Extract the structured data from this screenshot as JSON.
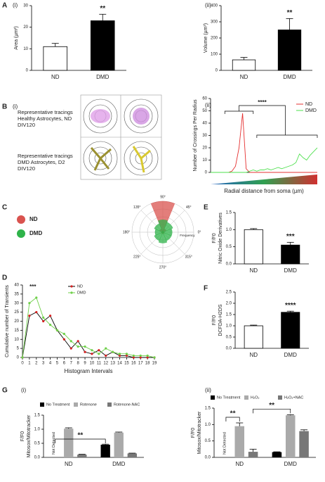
{
  "panel_labels": [
    "A",
    "B",
    "C",
    "D",
    "E",
    "F",
    "G"
  ],
  "sub_labels": [
    "(i)",
    "(ii)",
    "(i)",
    "(ii)",
    "(i)",
    "(ii)"
  ],
  "tracing_text": [
    [
      "Representative tracings",
      "Healthy Astrocytes, ND",
      "DIV120"
    ],
    [
      "Representative tracings",
      "DMD Astrocytes, D2",
      "DIV120"
    ]
  ],
  "chart_data": [
    {
      "type": "bar",
      "ylabel": "Area (µm²)",
      "categories": [
        "ND",
        "DMD"
      ],
      "values": [
        11,
        23
      ],
      "errors": [
        1.5,
        3
      ],
      "colors": [
        "#ffffff",
        "#000000"
      ],
      "ylim": [
        0,
        30
      ],
      "yticks": [
        0,
        10,
        20,
        30
      ],
      "annotations": [
        "**"
      ]
    },
    {
      "type": "bar",
      "ylabel": "Volume (µm³)",
      "categories": [
        "ND",
        "DMD"
      ],
      "values": [
        65,
        250
      ],
      "errors": [
        15,
        70
      ],
      "colors": [
        "#ffffff",
        "#000000"
      ],
      "ylim": [
        0,
        400
      ],
      "yticks": [
        0,
        100,
        200,
        300,
        400
      ],
      "annotations": [
        "**"
      ]
    },
    {
      "type": "line",
      "ylabel": "Number of Crossings Per Radius",
      "xlabel": "Radial distance from soma (µm)",
      "x": [
        0,
        1,
        2,
        3,
        4,
        5,
        6,
        7,
        8,
        9,
        10,
        11,
        12,
        13,
        14,
        15,
        16,
        17,
        18,
        19,
        20,
        21,
        22,
        23,
        24,
        25,
        26,
        27,
        28,
        29,
        30
      ],
      "xlim": [
        0,
        30
      ],
      "series": [
        {
          "name": "ND",
          "color": "#e53030",
          "values": [
            0,
            0,
            0,
            0,
            0,
            0,
            1,
            5,
            20,
            48,
            3,
            0,
            0,
            0,
            0,
            0,
            0,
            0,
            0,
            0,
            0,
            0,
            0,
            0,
            0,
            0,
            0,
            0,
            0,
            0,
            0
          ]
        },
        {
          "name": "DMD",
          "color": "#4ee04e",
          "values": [
            0,
            0,
            0,
            0,
            0,
            0,
            0,
            0,
            0,
            0,
            0,
            1,
            2,
            1,
            2,
            2,
            3,
            2,
            3,
            4,
            3,
            4,
            5,
            6,
            8,
            15,
            12,
            10,
            14,
            17,
            20
          ]
        }
      ],
      "ylim": [
        0,
        60
      ],
      "yticks": [
        0,
        10,
        20,
        30,
        40,
        50,
        60
      ],
      "legend": "top-right",
      "annotations": [
        "****"
      ]
    },
    {
      "type": "polar",
      "categories": [
        "0°",
        "45°",
        "90°",
        "135°",
        "180°",
        "225°",
        "270°",
        "315°"
      ],
      "rlim": [
        0,
        1
      ],
      "radial_label": "Frequency",
      "series": [
        {
          "name": "ND",
          "color": "#d9534f",
          "values": [
            0.05,
            0.12,
            1,
            0.12,
            0.05,
            0.05,
            0.05,
            0.05
          ]
        },
        {
          "name": "DMD",
          "color": "#2fb34a",
          "values": [
            0.3,
            0.35,
            0.4,
            0.3,
            0.25,
            0.3,
            0.35,
            0.3
          ]
        }
      ]
    },
    {
      "type": "bar",
      "ylabel": "F/F0",
      "ylabel2": "Nitric Oxide Derivatives",
      "categories": [
        "ND",
        "DMD"
      ],
      "values": [
        1.0,
        0.55
      ],
      "errors": [
        0.03,
        0.08
      ],
      "colors": [
        "#ffffff",
        "#000000"
      ],
      "ylim": [
        0,
        1.5
      ],
      "yticks": [
        {
          "value": 0,
          "label": "0.0"
        },
        0.5,
        {
          "value": 1,
          "label": "1.0"
        },
        1.5
      ],
      "annotations": [
        "***"
      ]
    },
    {
      "type": "line",
      "ylabel": "Cumulative number of Transients",
      "xlabel": "Histogram Intervals",
      "x": [
        0,
        1,
        2,
        3,
        4,
        5,
        6,
        7,
        8,
        9,
        10,
        11,
        12,
        13,
        14,
        15,
        16,
        17,
        18,
        19
      ],
      "xlim": [
        0,
        19
      ],
      "xticks": [
        0,
        1,
        2,
        3,
        4,
        5,
        6,
        7,
        8,
        9,
        10,
        11,
        12,
        13,
        14,
        15,
        16,
        17,
        18,
        19
      ],
      "markers": true,
      "series": [
        {
          "name": "ND",
          "color": "#d62020",
          "line_color": "#000000",
          "values": [
            0,
            23,
            25,
            20,
            23,
            15,
            10,
            5,
            9,
            3,
            2,
            4,
            1,
            3,
            1,
            1,
            0,
            0,
            0,
            0
          ]
        },
        {
          "name": "DMD",
          "color": "#6fd04a",
          "line_color": "#6fd04a",
          "values": [
            0,
            30,
            33,
            22,
            18,
            15,
            13,
            9,
            6,
            6,
            4,
            2,
            5,
            3,
            2,
            2,
            1,
            1,
            1,
            0
          ]
        }
      ],
      "ylim": [
        0,
        40
      ],
      "yticks": [
        0,
        5,
        10,
        15,
        20,
        25,
        30,
        35,
        40
      ],
      "legend": "top-right",
      "annotations": [
        "***"
      ]
    },
    {
      "type": "bar",
      "ylabel": "F/F0",
      "ylabel2": "DCFDA-H2DS",
      "categories": [
        "ND",
        "DMD"
      ],
      "values": [
        1.0,
        1.6
      ],
      "errors": [
        0.03,
        0.05
      ],
      "colors": [
        "#ffffff",
        "#000000"
      ],
      "ylim": [
        0,
        2.5
      ],
      "yticks": [
        {
          "value": 0,
          "label": "0.0"
        },
        0.5,
        {
          "value": 1,
          "label": "1.0"
        },
        1.5,
        {
          "value": 2,
          "label": "2.0"
        },
        2.5
      ],
      "annotations": [
        "****"
      ]
    },
    {
      "type": "grouped_bar",
      "ylabel": "F/F0",
      "ylabel2": "Mitosox/Mitotracker",
      "categories": [
        "ND",
        "DMD"
      ],
      "series": [
        {
          "name": "No Treatment",
          "color": "#000000",
          "values": [
            0,
            0.45
          ],
          "errors": [
            0,
            0.02
          ]
        },
        {
          "name": "Rotenone",
          "color": "#aaaaaa",
          "values": [
            1.02,
            0.88
          ],
          "errors": [
            0.03,
            0.02
          ]
        },
        {
          "name": "Rotenone-NAC",
          "color": "#777777",
          "values": [
            0.1,
            0.14
          ],
          "errors": [
            0.01,
            0.01
          ]
        }
      ],
      "ylim": [
        0,
        1.5
      ],
      "yticks": [
        {
          "value": 0,
          "label": "0.0"
        },
        0.5,
        {
          "value": 1,
          "label": "1.0"
        },
        1.5
      ],
      "annotations": [
        "Not Detected",
        "**"
      ]
    },
    {
      "type": "grouped_bar",
      "ylabel": "F/F0",
      "ylabel2": "Mitosox/Mitotracker",
      "categories": [
        "ND",
        "DMD"
      ],
      "series": [
        {
          "name": "No Treatment",
          "color": "#000000",
          "values": [
            0,
            0.16
          ],
          "errors": [
            0,
            0.01
          ]
        },
        {
          "name": "H₂O₂",
          "color": "#aaaaaa",
          "values": [
            0.95,
            1.28
          ],
          "errors": [
            0.1,
            0.02
          ]
        },
        {
          "name": "H₂O₂+NAC",
          "color": "#777777",
          "values": [
            0.17,
            0.8
          ],
          "errors": [
            0.08,
            0.04
          ]
        }
      ],
      "ylim": [
        0,
        1.5
      ],
      "yticks": [
        {
          "value": 0,
          "label": "0.0"
        },
        0.5,
        {
          "value": 1,
          "label": "1.0"
        },
        1.5
      ],
      "annotations": [
        "Not Detected",
        "**",
        "**"
      ]
    }
  ]
}
